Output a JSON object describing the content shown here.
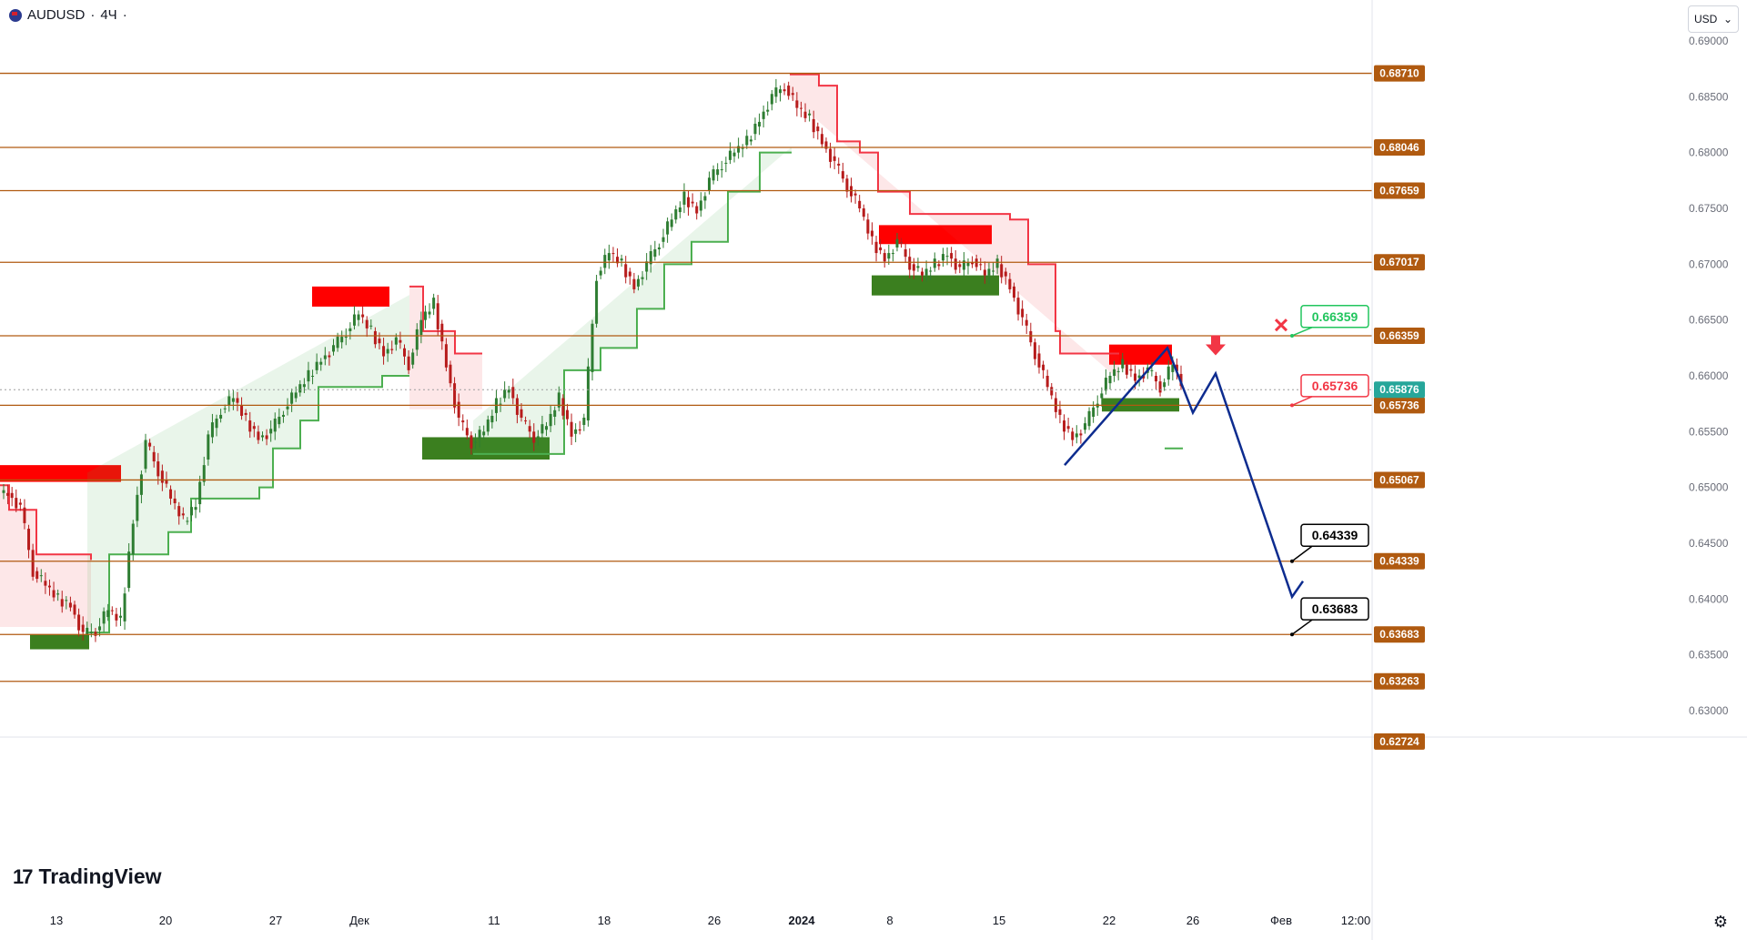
{
  "header": {
    "symbol": "AUDUSD",
    "interval": "4Ч",
    "separator": "·"
  },
  "currency_button": {
    "label": "USD",
    "icon": "chevron-down-icon"
  },
  "logo": {
    "text": "TradingView",
    "icon": "tradingview-logo-icon"
  },
  "settings": {
    "icon": "gear-icon"
  },
  "chart_data": {
    "type": "candlestick",
    "ylim": [
      0.6245,
      0.693
    ],
    "price_ticks": [
      "0.69000",
      "0.68500",
      "0.68000",
      "0.67500",
      "0.67000",
      "0.66500",
      "0.66000",
      "0.65500",
      "0.65000",
      "0.64500",
      "0.64000",
      "0.63500",
      "0.63000"
    ],
    "x_ticks": [
      {
        "label": "13",
        "bold": false
      },
      {
        "label": "20",
        "bold": false
      },
      {
        "label": "27",
        "bold": false
      },
      {
        "label": "Дек",
        "bold": false
      },
      {
        "label": "11",
        "bold": false
      },
      {
        "label": "18",
        "bold": false
      },
      {
        "label": "26",
        "bold": false
      },
      {
        "label": "2024",
        "bold": true
      },
      {
        "label": "8",
        "bold": false
      },
      {
        "label": "15",
        "bold": false
      },
      {
        "label": "22",
        "bold": false
      },
      {
        "label": "26",
        "bold": false
      },
      {
        "label": "Фев",
        "bold": false
      },
      {
        "label": "12:00",
        "bold": false
      }
    ],
    "levels": [
      "0.68710",
      "0.68046",
      "0.67659",
      "0.67017",
      "0.66359",
      "0.65736",
      "0.65067",
      "0.64339",
      "0.63683",
      "0.63263"
    ],
    "last_price": "0.65876",
    "bottom_label": "0.62724",
    "callouts": [
      {
        "label": "0.66359",
        "color": "#22c55e"
      },
      {
        "label": "0.65736",
        "color": "#f23645"
      },
      {
        "label": "0.64339",
        "color": "#000000"
      },
      {
        "label": "0.63683",
        "color": "#000000"
      }
    ],
    "price_path": [
      0.6495,
      0.6482,
      0.6425,
      0.6412,
      0.64,
      0.6395,
      0.6368,
      0.6372,
      0.639,
      0.638,
      0.647,
      0.654,
      0.6515,
      0.649,
      0.647,
      0.6485,
      0.6545,
      0.657,
      0.658,
      0.656,
      0.6545,
      0.655,
      0.657,
      0.6585,
      0.66,
      0.6615,
      0.6625,
      0.664,
      0.6655,
      0.664,
      0.662,
      0.6632,
      0.661,
      0.665,
      0.6665,
      0.661,
      0.656,
      0.654,
      0.655,
      0.6575,
      0.659,
      0.656,
      0.6545,
      0.6555,
      0.658,
      0.6548,
      0.656,
      0.669,
      0.671,
      0.67,
      0.668,
      0.67,
      0.672,
      0.674,
      0.676,
      0.6748,
      0.6775,
      0.679,
      0.68,
      0.681,
      0.683,
      0.685,
      0.686,
      0.684,
      0.683,
      0.681,
      0.679,
      0.677,
      0.675,
      0.672,
      0.6705,
      0.672,
      0.67,
      0.669,
      0.67,
      0.671,
      0.6695,
      0.6705,
      0.669,
      0.67,
      0.668,
      0.665,
      0.662,
      0.659,
      0.656,
      0.6545,
      0.6555,
      0.658,
      0.66,
      0.661,
      0.6598,
      0.6605,
      0.659,
      0.661,
      0.6585
    ]
  }
}
